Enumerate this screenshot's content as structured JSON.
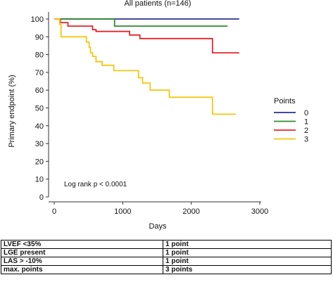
{
  "chart_data": {
    "type": "line",
    "subtype": "kaplan-meier step",
    "title": "All patients (n=146)",
    "xlabel": "Days",
    "ylabel": "Primary endpoint (%)",
    "xlim": [
      0,
      3000
    ],
    "ylim": [
      0,
      100
    ],
    "xticks": [
      0,
      1000,
      2000,
      3000
    ],
    "yticks": [
      0,
      10,
      20,
      30,
      40,
      50,
      60,
      70,
      80,
      90,
      100
    ],
    "grid": false,
    "annotation": "Log rank p < 0.0001",
    "legend": {
      "title": "Points",
      "placement": "right"
    },
    "series": [
      {
        "name": "0",
        "color": "#2b2f8f",
        "points": [
          [
            0,
            100
          ],
          [
            2700,
            100
          ]
        ]
      },
      {
        "name": "1",
        "color": "#2e8b2e",
        "points": [
          [
            0,
            100
          ],
          [
            880,
            100
          ],
          [
            880,
            96
          ],
          [
            2530,
            96
          ]
        ]
      },
      {
        "name": "2",
        "color": "#e8242a",
        "points": [
          [
            0,
            100
          ],
          [
            90,
            100
          ],
          [
            90,
            98
          ],
          [
            200,
            98
          ],
          [
            200,
            96
          ],
          [
            280,
            96
          ],
          [
            280,
            96
          ],
          [
            560,
            96
          ],
          [
            560,
            94
          ],
          [
            610,
            94
          ],
          [
            610,
            93
          ],
          [
            1100,
            93
          ],
          [
            1100,
            91
          ],
          [
            1250,
            91
          ],
          [
            1250,
            89
          ],
          [
            2310,
            89
          ],
          [
            2310,
            81
          ],
          [
            2700,
            81
          ]
        ]
      },
      {
        "name": "3",
        "color": "#f2c80f",
        "points": [
          [
            0,
            100
          ],
          [
            80,
            100
          ],
          [
            80,
            97
          ],
          [
            100,
            97
          ],
          [
            100,
            90
          ],
          [
            470,
            90
          ],
          [
            470,
            87
          ],
          [
            510,
            87
          ],
          [
            510,
            84
          ],
          [
            530,
            84
          ],
          [
            530,
            81
          ],
          [
            560,
            81
          ],
          [
            560,
            79
          ],
          [
            610,
            79
          ],
          [
            610,
            76
          ],
          [
            700,
            76
          ],
          [
            700,
            74
          ],
          [
            870,
            74
          ],
          [
            870,
            71
          ],
          [
            1230,
            71
          ],
          [
            1230,
            67
          ],
          [
            1290,
            67
          ],
          [
            1290,
            64
          ],
          [
            1400,
            64
          ],
          [
            1400,
            60
          ],
          [
            1680,
            60
          ],
          [
            1680,
            56
          ],
          [
            2310,
            56
          ],
          [
            2310,
            46.5
          ],
          [
            2650,
            46.5
          ]
        ]
      }
    ]
  },
  "score_table": [
    {
      "criterion": "LVEF <35%",
      "points": "1 point"
    },
    {
      "criterion": "LGE present",
      "points": "1 point"
    },
    {
      "criterion": "LAS > -10%",
      "points": "1 point"
    },
    {
      "criterion": "max. points",
      "points": "3 points"
    }
  ]
}
